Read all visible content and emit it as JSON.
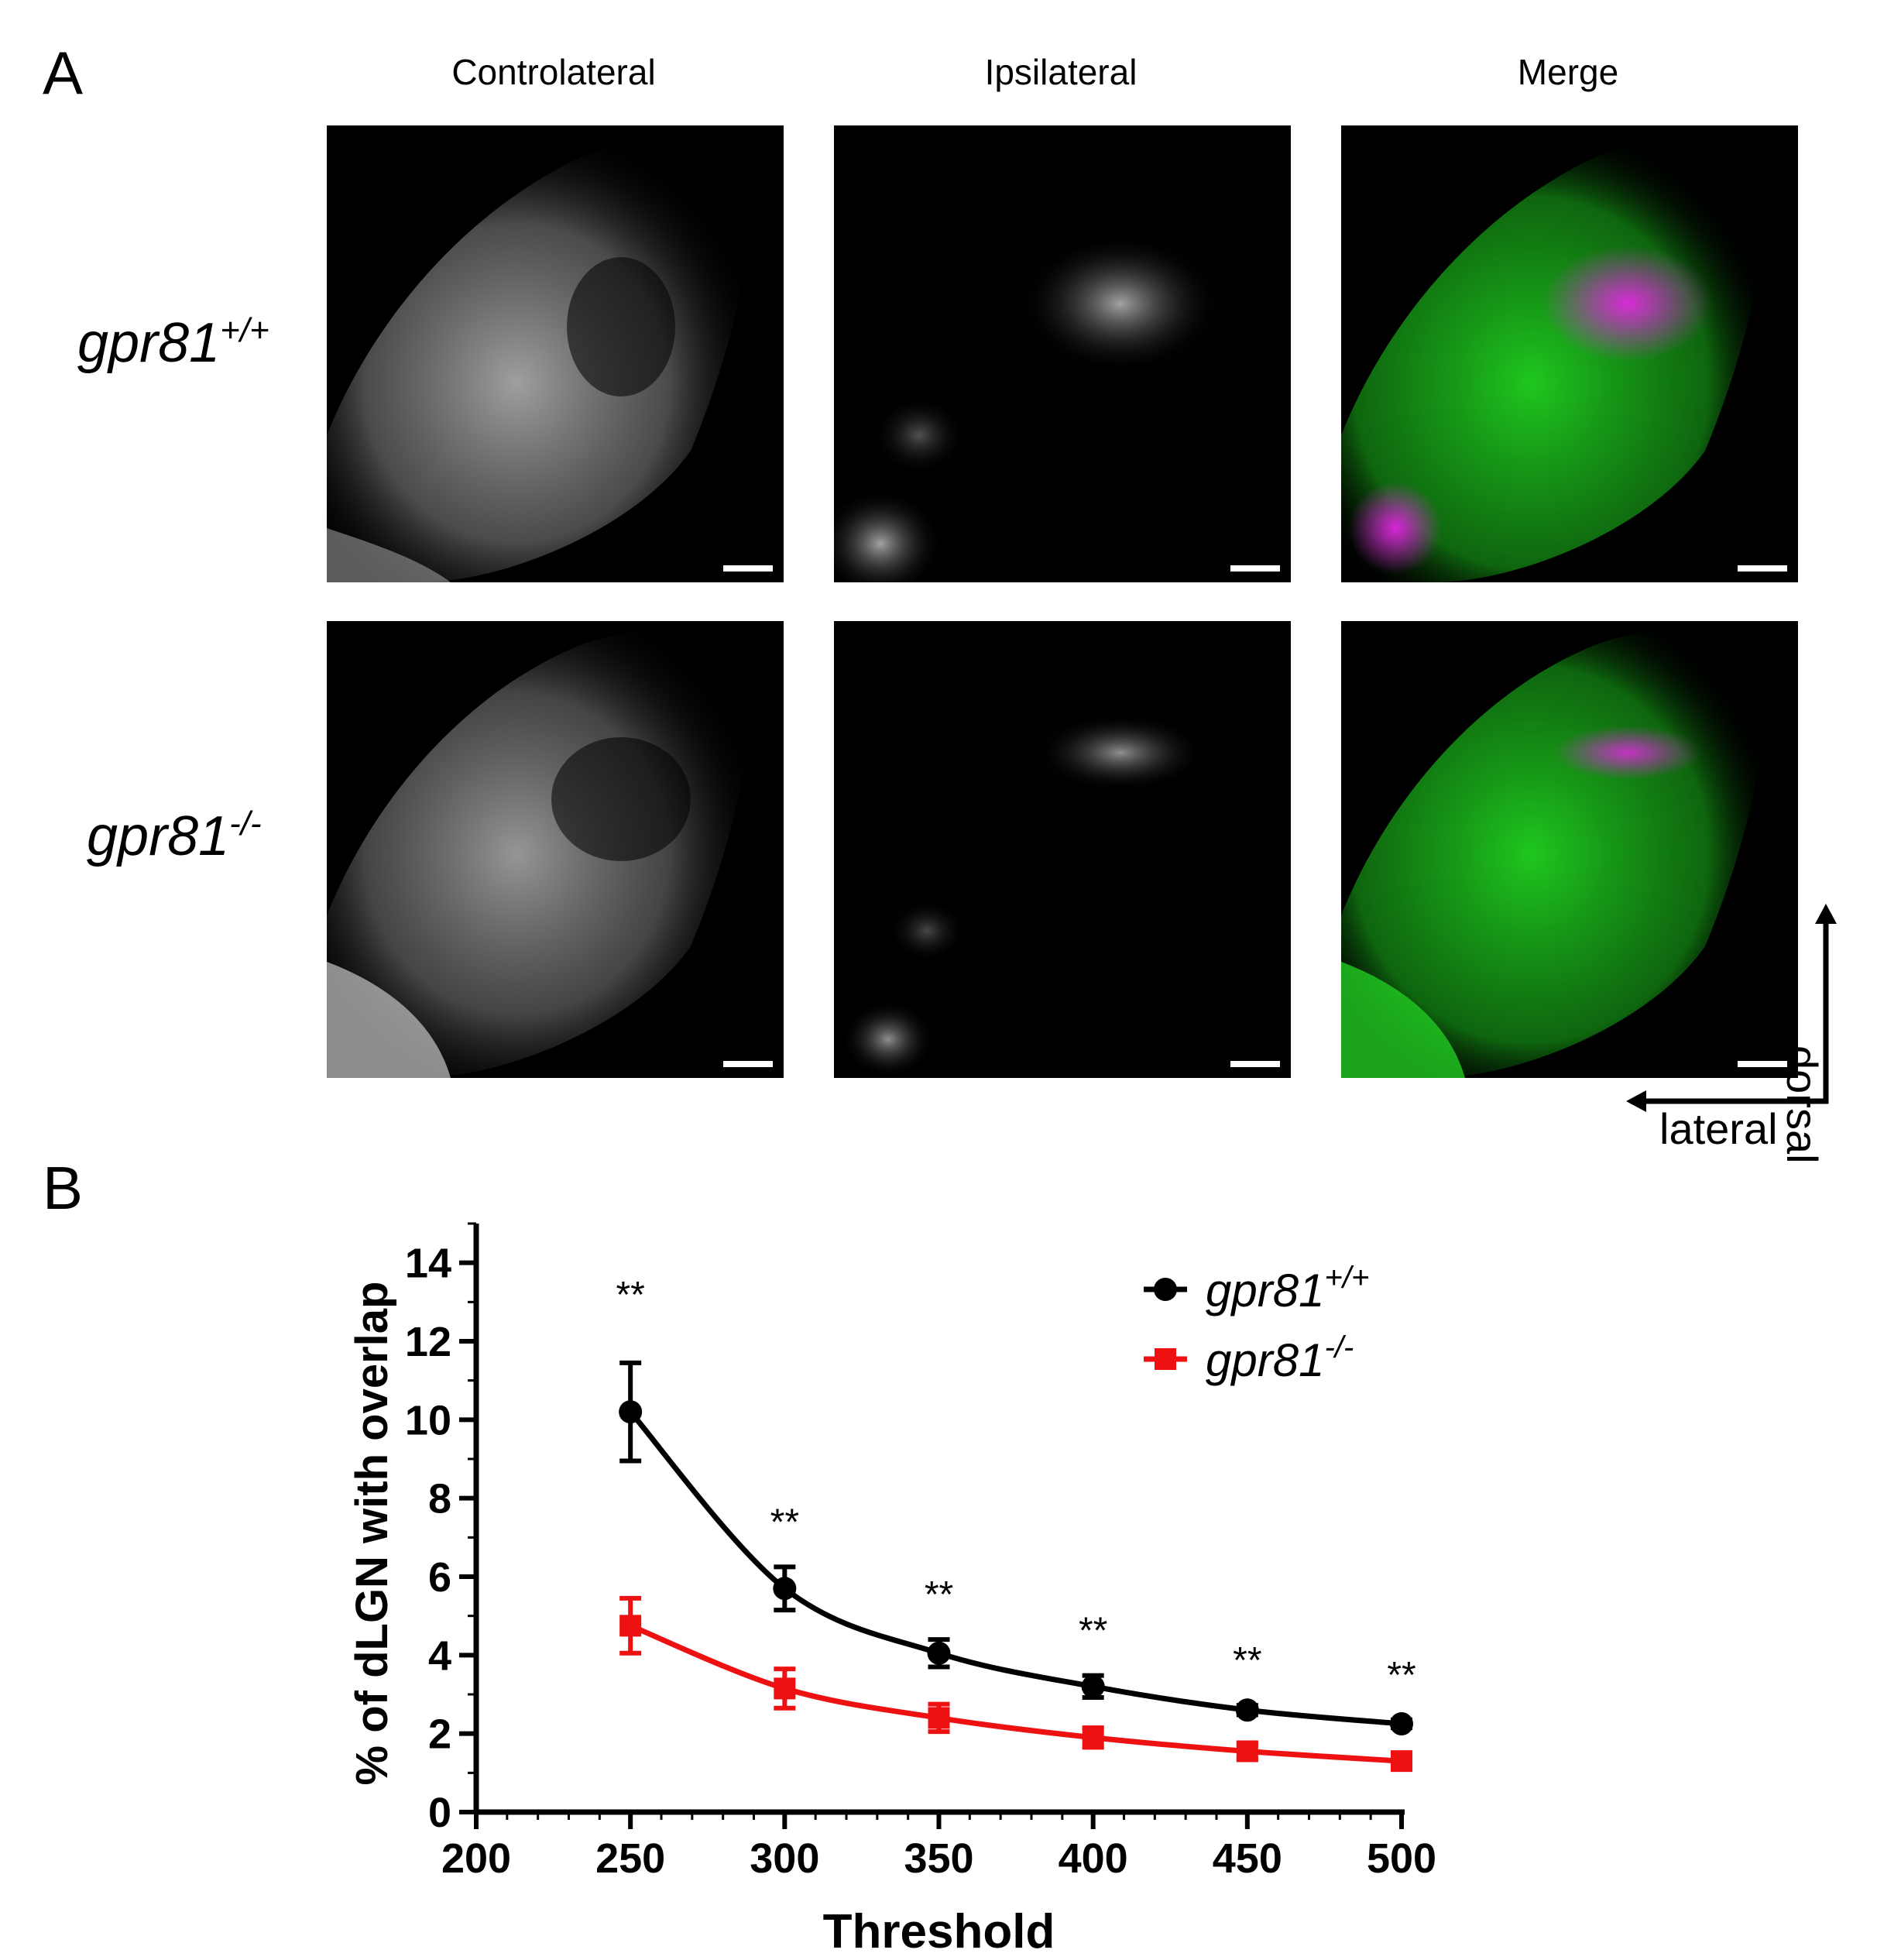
{
  "panel_a": {
    "letter": "A",
    "columns": [
      "Controlateral",
      "Ipsilateral",
      "Merge"
    ],
    "rows": [
      {
        "base": "gpr81",
        "sup": "+/+"
      },
      {
        "base": "gpr81",
        "sup": "-/-"
      }
    ],
    "orientation": {
      "vertical": "dorsal",
      "horizontal": "lateral"
    },
    "colors": {
      "controlateral_merge": "#22dd22",
      "ipsilateral_merge": "#ee22ee"
    }
  },
  "panel_b": {
    "letter": "B"
  },
  "chart_data": {
    "type": "line",
    "xlabel": "Threshold",
    "ylabel": "% of dLGN with overlap",
    "xlim": [
      200,
      500
    ],
    "ylim": [
      0,
      15
    ],
    "xticks": [
      200,
      250,
      300,
      350,
      400,
      450,
      500
    ],
    "yticks": [
      0,
      2,
      4,
      6,
      8,
      10,
      12,
      14
    ],
    "x": [
      250,
      300,
      350,
      400,
      450,
      500
    ],
    "legend_position": "top-right",
    "series": [
      {
        "name": "gpr81",
        "name_sup": "+/+",
        "marker": "circle",
        "color": "#000000",
        "values": [
          10.2,
          5.7,
          4.05,
          3.2,
          2.6,
          2.25
        ],
        "errors": [
          1.25,
          0.55,
          0.35,
          0.28,
          0.12,
          0.1
        ]
      },
      {
        "name": "gpr81",
        "name_sup": "-/-",
        "marker": "square",
        "color": "#ee1111",
        "values": [
          4.75,
          3.15,
          2.4,
          1.9,
          1.55,
          1.3
        ],
        "errors": [
          0.7,
          0.5,
          0.35,
          0.25,
          0.2,
          0.15
        ]
      }
    ],
    "annotations": [
      "**",
      "**",
      "**",
      "**",
      "**",
      "**"
    ]
  }
}
